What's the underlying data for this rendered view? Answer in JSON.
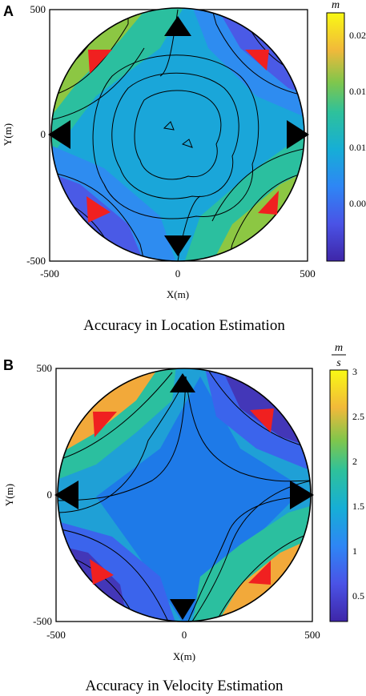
{
  "chart_data": [
    {
      "type": "heatmap",
      "panel_label": "A",
      "title": "Accuracy in Location Estimation",
      "xlabel": "X(m)",
      "ylabel": "Y(m)",
      "xlim": [
        -500,
        500
      ],
      "ylim": [
        -500,
        500
      ],
      "x_ticks": [
        "-500",
        "0",
        "500"
      ],
      "y_ticks": [
        "500",
        "0",
        "-500"
      ],
      "colorbar": {
        "unit": "m",
        "range": [
          0,
          0.022
        ],
        "ticks": [
          "0.02",
          "0.015",
          "0.01",
          "0.005"
        ]
      },
      "sensors_black": [
        [
          0,
          450
        ],
        [
          -450,
          0
        ],
        [
          450,
          0
        ],
        [
          0,
          -450
        ]
      ],
      "sensors_red": [
        [
          -300,
          300
        ],
        [
          300,
          300
        ],
        [
          -300,
          -300
        ],
        [
          300,
          -300
        ]
      ]
    },
    {
      "type": "heatmap",
      "panel_label": "B",
      "title": "Accuracy in Velocity Estimation",
      "xlabel": "X(m)",
      "ylabel": "Y(m)",
      "xlim": [
        -500,
        500
      ],
      "ylim": [
        -500,
        500
      ],
      "x_ticks": [
        "-500",
        "0",
        "500"
      ],
      "y_ticks": [
        "500",
        "0",
        "-500"
      ],
      "colorbar": {
        "unit_num": "m",
        "unit_den": "s",
        "range": [
          0.2,
          3.0
        ],
        "ticks": [
          "3",
          "2.5",
          "2",
          "1.5",
          "1",
          "0.5"
        ]
      },
      "sensors_black": [
        [
          0,
          450
        ],
        [
          -450,
          0
        ],
        [
          450,
          0
        ],
        [
          0,
          -450
        ]
      ],
      "sensors_red": [
        [
          -300,
          300
        ],
        [
          300,
          300
        ],
        [
          -300,
          -300
        ],
        [
          300,
          -300
        ]
      ]
    }
  ]
}
